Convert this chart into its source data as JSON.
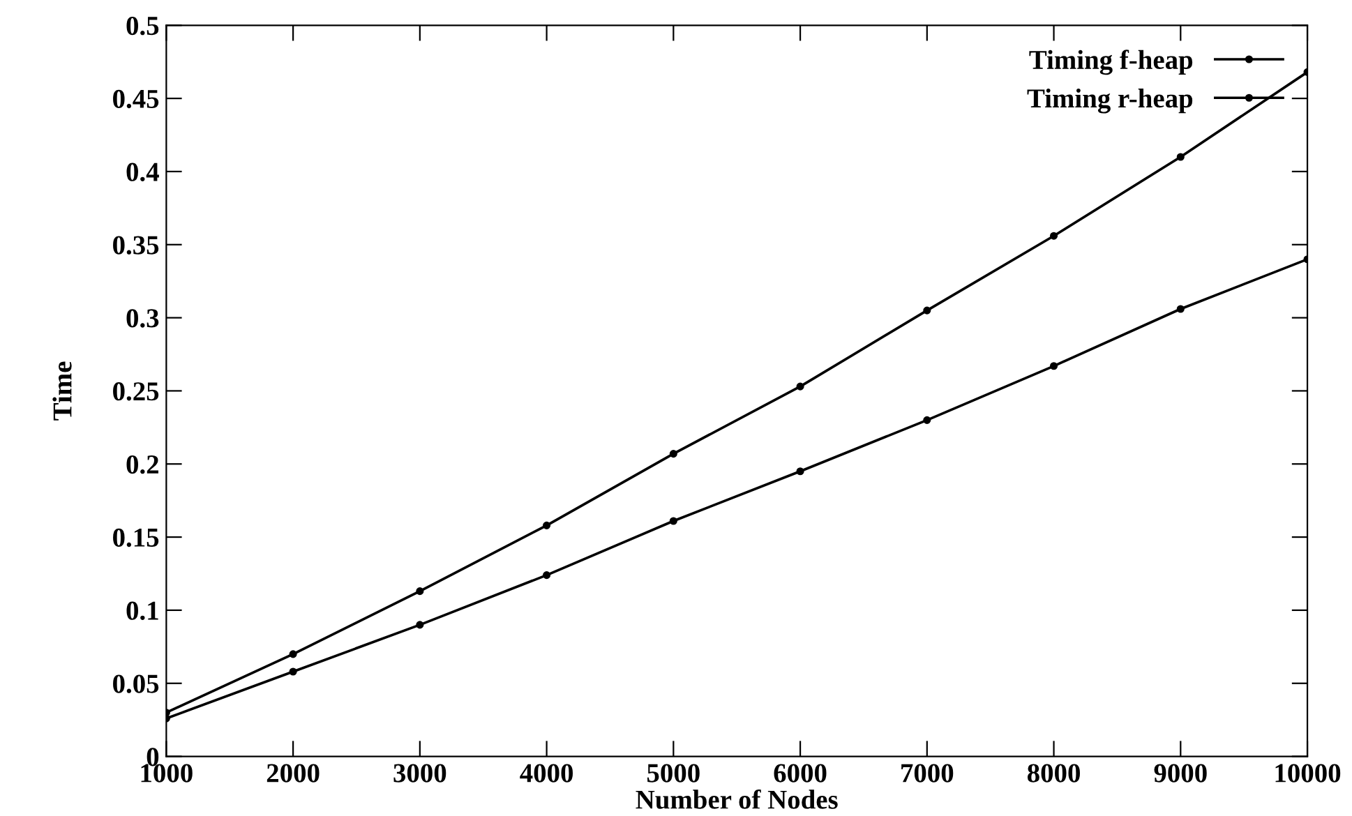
{
  "chart_data": {
    "type": "line",
    "xlabel": "Number of Nodes",
    "ylabel": "Time",
    "x": [
      1000,
      2000,
      3000,
      4000,
      5000,
      6000,
      7000,
      8000,
      9000,
      10000
    ],
    "series": [
      {
        "name": "Timing f-heap",
        "color": "#000000",
        "values": [
          0.03,
          0.07,
          0.113,
          0.158,
          0.207,
          0.253,
          0.305,
          0.356,
          0.41,
          0.468
        ]
      },
      {
        "name": "Timing r-heap",
        "color": "#000000",
        "values": [
          0.026,
          0.058,
          0.09,
          0.124,
          0.161,
          0.195,
          0.23,
          0.267,
          0.306,
          0.34
        ]
      }
    ],
    "xlim": [
      1000,
      10000
    ],
    "xticks": [
      1000,
      2000,
      3000,
      4000,
      5000,
      6000,
      7000,
      8000,
      9000,
      10000
    ],
    "ylim": [
      0,
      0.5
    ],
    "yticks": [
      0,
      0.05,
      0.1,
      0.15,
      0.2,
      0.25,
      0.3,
      0.35,
      0.4,
      0.45,
      0.5
    ],
    "marker": "circle",
    "line_style": "solid",
    "legend": "top right",
    "grid": false
  }
}
